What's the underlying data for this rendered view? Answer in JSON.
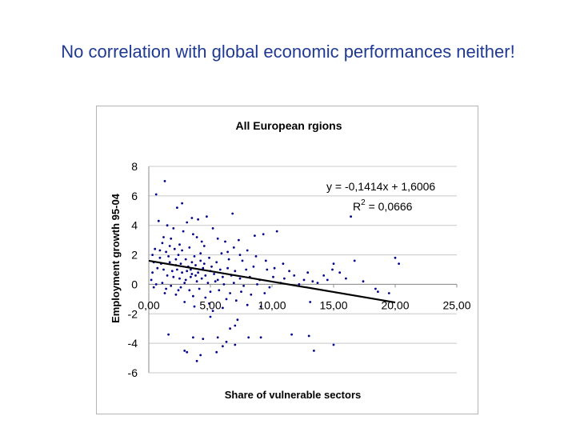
{
  "slide": {
    "title": "No correlation with global economic performances neither!"
  },
  "chart_data": {
    "type": "scatter",
    "title": "All European rgions",
    "xlabel": "Share of vulnerable sectors",
    "ylabel": "Employment growth 95-04",
    "xlim": [
      0,
      25
    ],
    "ylim": [
      -6,
      8
    ],
    "x_ticks": [
      "0,00",
      "5,00",
      "10,00",
      "15,00",
      "20,00",
      "25,00"
    ],
    "y_ticks": [
      "8",
      "6",
      "4",
      "2",
      "0",
      "-2",
      "-4",
      "-6"
    ],
    "grid": "horizontal",
    "legend": "none",
    "point_color": "#00008b",
    "trendline": {
      "slope": -0.1414,
      "intercept": 1.6006,
      "x_range": [
        0,
        20
      ],
      "equation_label": "y = -0,1414x + 1,6006",
      "r2_prefix": "R",
      "r2_sup": "2",
      "r2_value": " = 0,0666"
    },
    "points": [
      [
        1.3,
        7.0
      ],
      [
        0.6,
        6.1
      ],
      [
        2.7,
        5.5
      ],
      [
        2.3,
        5.2
      ],
      [
        3.5,
        4.5
      ],
      [
        0.8,
        4.3
      ],
      [
        1.5,
        4.0
      ],
      [
        2.0,
        3.8
      ],
      [
        3.1,
        4.2
      ],
      [
        4.0,
        4.4
      ],
      [
        4.7,
        4.6
      ],
      [
        6.8,
        4.8
      ],
      [
        5.2,
        3.8
      ],
      [
        3.6,
        3.4
      ],
      [
        2.8,
        3.6
      ],
      [
        1.8,
        3.1
      ],
      [
        1.1,
        2.8
      ],
      [
        0.5,
        2.4
      ],
      [
        2.5,
        2.7
      ],
      [
        3.9,
        3.2
      ],
      [
        4.3,
        2.9
      ],
      [
        5.6,
        3.1
      ],
      [
        6.2,
        2.9
      ],
      [
        7.3,
        3.0
      ],
      [
        8.6,
        3.3
      ],
      [
        9.3,
        3.4
      ],
      [
        10.4,
        3.6
      ],
      [
        1.4,
        2.2
      ],
      [
        2.1,
        2.4
      ],
      [
        3.3,
        2.5
      ],
      [
        4.5,
        2.6
      ],
      [
        5.9,
        2.1
      ],
      [
        0.3,
        2.0
      ],
      [
        0.9,
        1.8
      ],
      [
        1.6,
        1.9
      ],
      [
        2.4,
        2.0
      ],
      [
        3.0,
        1.7
      ],
      [
        3.7,
        1.9
      ],
      [
        4.2,
        1.6
      ],
      [
        4.9,
        1.8
      ],
      [
        5.5,
        1.5
      ],
      [
        6.5,
        1.7
      ],
      [
        7.6,
        1.6
      ],
      [
        0.4,
        1.5
      ],
      [
        1.0,
        1.4
      ],
      [
        1.7,
        1.5
      ],
      [
        2.2,
        1.3
      ],
      [
        2.6,
        1.4
      ],
      [
        3.2,
        1.2
      ],
      [
        3.8,
        1.3
      ],
      [
        4.4,
        1.1
      ],
      [
        5.1,
        1.2
      ],
      [
        5.8,
        1.0
      ],
      [
        6.4,
        1.1
      ],
      [
        7.0,
        0.9
      ],
      [
        7.9,
        1.0
      ],
      [
        8.5,
        1.2
      ],
      [
        9.6,
        1.0
      ],
      [
        0.7,
        1.1
      ],
      [
        1.2,
        1.0
      ],
      [
        1.9,
        0.9
      ],
      [
        2.3,
        1.0
      ],
      [
        2.7,
        0.8
      ],
      [
        3.1,
        0.9
      ],
      [
        3.5,
        0.7
      ],
      [
        4.0,
        0.8
      ],
      [
        4.6,
        0.6
      ],
      [
        5.3,
        0.7
      ],
      [
        6.0,
        0.5
      ],
      [
        6.7,
        0.6
      ],
      [
        7.4,
        0.4
      ],
      [
        8.2,
        0.5
      ],
      [
        9.0,
        0.3
      ],
      [
        10.1,
        0.5
      ],
      [
        11.0,
        0.4
      ],
      [
        11.8,
        0.6
      ],
      [
        12.6,
        0.3
      ],
      [
        1.5,
        0.6
      ],
      [
        2.0,
        0.5
      ],
      [
        2.5,
        0.4
      ],
      [
        3.0,
        0.3
      ],
      [
        3.4,
        0.5
      ],
      [
        3.9,
        0.2
      ],
      [
        4.3,
        0.4
      ],
      [
        4.8,
        0.1
      ],
      [
        5.4,
        0.2
      ],
      [
        6.1,
        0.0
      ],
      [
        6.9,
        0.1
      ],
      [
        7.7,
        -0.1
      ],
      [
        8.8,
        0.0
      ],
      [
        9.8,
        -0.2
      ],
      [
        10.7,
        0.1
      ],
      [
        12.2,
        0.0
      ],
      [
        13.3,
        0.2
      ],
      [
        14.5,
        0.3
      ],
      [
        0.4,
        -0.2
      ],
      [
        1.1,
        0.1
      ],
      [
        1.8,
        -0.1
      ],
      [
        2.6,
        -0.2
      ],
      [
        3.3,
        -0.4
      ],
      [
        4.1,
        -0.3
      ],
      [
        5.0,
        -0.5
      ],
      [
        5.7,
        -0.4
      ],
      [
        6.6,
        -0.6
      ],
      [
        7.5,
        -0.5
      ],
      [
        8.3,
        -0.7
      ],
      [
        9.4,
        -0.6
      ],
      [
        1.3,
        -0.6
      ],
      [
        2.2,
        -0.7
      ],
      [
        3.6,
        -0.8
      ],
      [
        4.6,
        -0.9
      ],
      [
        6.3,
        -1.0
      ],
      [
        2.9,
        -1.2
      ],
      [
        4.9,
        -1.3
      ],
      [
        7.1,
        -1.1
      ],
      [
        3.7,
        -1.5
      ],
      [
        5.2,
        -1.8
      ],
      [
        6.0,
        -1.6
      ],
      [
        8.0,
        -1.4
      ],
      [
        9.1,
        -1.5
      ],
      [
        13.1,
        -1.2
      ],
      [
        5.0,
        -2.2
      ],
      [
        7.2,
        -2.4
      ],
      [
        3.6,
        -3.6
      ],
      [
        1.6,
        -3.4
      ],
      [
        6.6,
        -3.0
      ],
      [
        7.0,
        -2.8
      ],
      [
        4.4,
        -3.7
      ],
      [
        5.6,
        -3.6
      ],
      [
        2.9,
        -4.5
      ],
      [
        3.1,
        -4.6
      ],
      [
        4.2,
        -4.8
      ],
      [
        3.9,
        -5.2
      ],
      [
        6.0,
        -4.2
      ],
      [
        5.5,
        -4.6
      ],
      [
        7.0,
        -4.1
      ],
      [
        8.1,
        -3.6
      ],
      [
        9.1,
        -3.6
      ],
      [
        11.6,
        -3.4
      ],
      [
        13.0,
        -3.5
      ],
      [
        13.4,
        -4.5
      ],
      [
        15.0,
        -4.1
      ],
      [
        6.3,
        -3.9
      ],
      [
        16.4,
        4.6
      ],
      [
        15.0,
        1.4
      ],
      [
        14.9,
        1.0
      ],
      [
        15.5,
        0.8
      ],
      [
        16.0,
        0.4
      ],
      [
        17.4,
        0.2
      ],
      [
        18.4,
        -0.3
      ],
      [
        20.0,
        1.8
      ],
      [
        20.3,
        1.4
      ],
      [
        18.6,
        -0.5
      ],
      [
        19.5,
        -0.6
      ],
      [
        16.7,
        1.6
      ],
      [
        14.2,
        0.6
      ],
      [
        13.7,
        0.1
      ],
      [
        12.9,
        0.8
      ],
      [
        11.4,
        0.9
      ],
      [
        10.9,
        1.4
      ],
      [
        10.2,
        1.1
      ],
      [
        9.5,
        1.6
      ],
      [
        8.7,
        1.9
      ],
      [
        8.0,
        2.3
      ],
      [
        7.4,
        2.0
      ],
      [
        6.9,
        2.5
      ],
      [
        6.4,
        2.2
      ],
      [
        0.2,
        0.3
      ],
      [
        0.3,
        0.8
      ],
      [
        0.6,
        0.0
      ],
      [
        1.4,
        -0.3
      ],
      [
        2.4,
        -0.4
      ],
      [
        2.9,
        0.1
      ],
      [
        3.5,
        1.5
      ],
      [
        4.2,
        2.1
      ],
      [
        2.7,
        2.3
      ],
      [
        2.2,
        1.7
      ],
      [
        1.7,
        2.6
      ],
      [
        1.2,
        3.2
      ],
      [
        0.9,
        2.3
      ],
      [
        3.4,
        1.0
      ],
      [
        3.8,
        0.6
      ],
      [
        4.5,
        1.4
      ],
      [
        5.0,
        0.9
      ],
      [
        5.6,
        0.3
      ]
    ]
  }
}
